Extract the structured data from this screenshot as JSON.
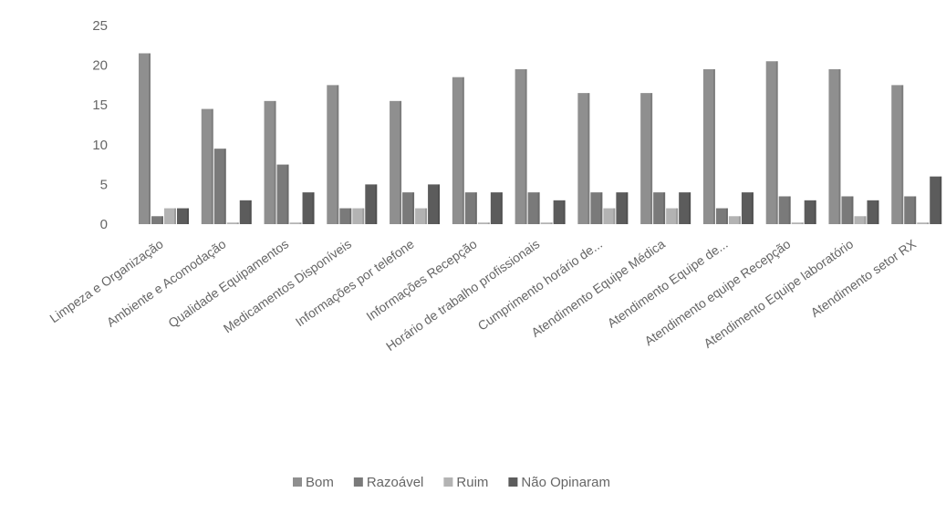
{
  "chart_data": {
    "type": "bar",
    "title": "",
    "xlabel": "",
    "ylabel": "",
    "ylim": [
      0,
      25
    ],
    "yticks": [
      0,
      5,
      10,
      15,
      20,
      25
    ],
    "grid": false,
    "legend_position": "bottom",
    "categories": [
      "Limpeza e Organização",
      "Ambiente e Acomodação",
      "Qualidade Equipamentos",
      "Medicamentos Disponíveis",
      "Informações por telefone",
      "Informações Recepção",
      "Horário de trabalho profissionais",
      "Cumprimento horário de...",
      "Atendimento Equipe Médica",
      "Atendimento Equipe de...",
      "Atendimento equipe Recepção",
      "Atendimento Equipe laboratório",
      "Atendimento setor RX"
    ],
    "series": [
      {
        "name": "Bom",
        "color": "#8f8f8f",
        "values": [
          21.5,
          14.5,
          15.5,
          17.5,
          15.5,
          18.5,
          19.5,
          16.5,
          16.5,
          19.5,
          20.5,
          19.5,
          17.5
        ]
      },
      {
        "name": "Razoável",
        "color": "#7a7a7a",
        "values": [
          1,
          9.5,
          7.5,
          2,
          4,
          4,
          4,
          4,
          4,
          2,
          3.5,
          3.5,
          3.5
        ]
      },
      {
        "name": "Ruim",
        "color": "#b3b3b3",
        "values": [
          2,
          0.2,
          0.2,
          2,
          2,
          0.2,
          0.2,
          2,
          2,
          1,
          0.2,
          1,
          0.2
        ]
      },
      {
        "name": "Não Opinaram",
        "color": "#5c5c5c",
        "values": [
          2,
          3,
          4,
          5,
          5,
          4,
          3,
          4,
          4,
          4,
          3,
          3,
          6
        ]
      }
    ]
  }
}
